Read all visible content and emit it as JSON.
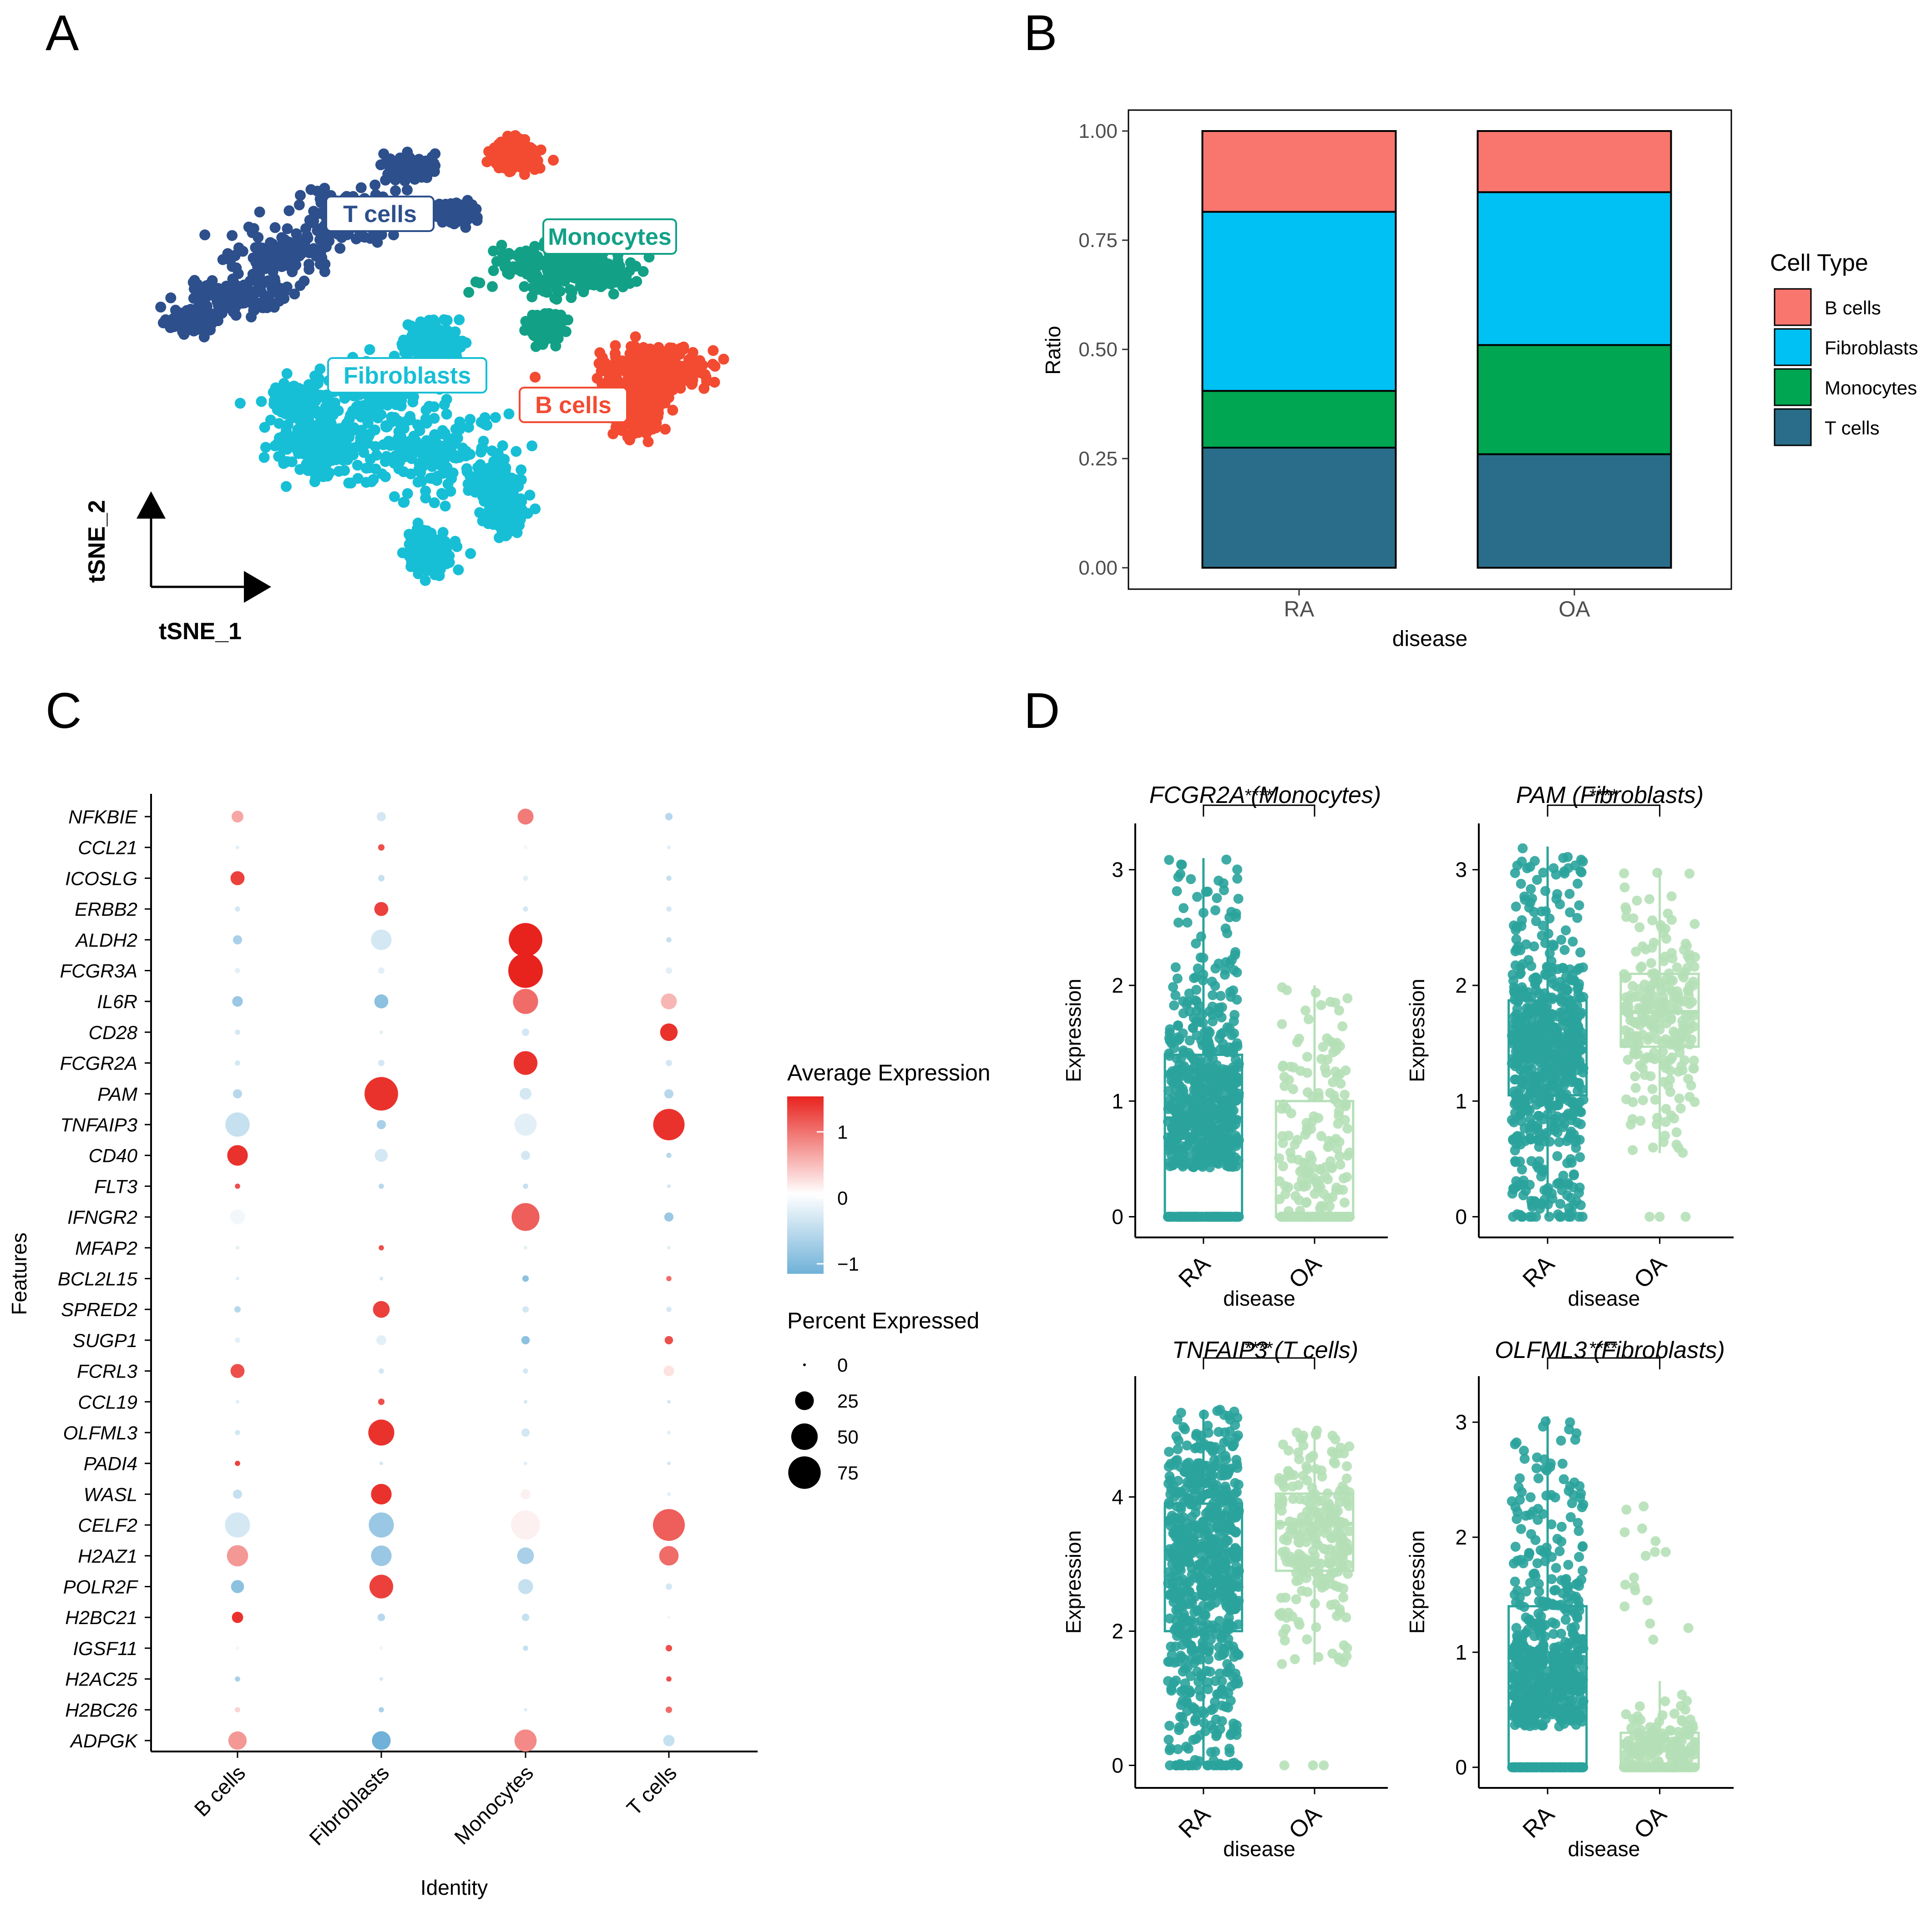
{
  "panel_labels": [
    "A",
    "B",
    "C",
    "D"
  ],
  "colors": {
    "b_cells": "#F8766D",
    "b_cells_tsne": "#F24B32",
    "fibroblasts": "#00C1F3",
    "fibroblasts_tsne": "#17BFD6",
    "monocytes": "#00A651",
    "monocytes_tsne": "#12A187",
    "t_cells": "#2A6D8A",
    "t_cells_tsne": "#2D4F8C",
    "ra": "#2AA39C",
    "oa": "#B5E0B7",
    "expr_high": "#E8231E",
    "expr_mid": "#FFFFFF",
    "expr_low": "#6FB1D8"
  },
  "chart_data": [
    {
      "panel": "A",
      "type": "scatter",
      "xlabel": "tSNE_1",
      "ylabel": "tSNE_2",
      "clusters": [
        {
          "name": "T cells",
          "label": "T cells",
          "color_key": "t_cells_tsne"
        },
        {
          "name": "Monocytes",
          "label": "Monocytes",
          "color_key": "monocytes_tsne"
        },
        {
          "name": "Fibroblasts",
          "label": "Fibroblasts",
          "color_key": "fibroblasts_tsne"
        },
        {
          "name": "B cells",
          "label": "B cells",
          "color_key": "b_cells_tsne"
        }
      ]
    },
    {
      "panel": "B",
      "type": "bar",
      "stacked": true,
      "categories": [
        "RA",
        "OA"
      ],
      "xlabel": "disease",
      "ylabel": "Ratio",
      "ylim": [
        0,
        1
      ],
      "yticks": [
        "0.00",
        "0.25",
        "0.50",
        "0.75",
        "1.00"
      ],
      "legend_title": "Cell Type",
      "legend_position": "right",
      "series": [
        {
          "name": "T cells",
          "color_key": "t_cells",
          "values": [
            0.275,
            0.26
          ]
        },
        {
          "name": "Monocytes",
          "color_key": "monocytes",
          "values": [
            0.13,
            0.25
          ]
        },
        {
          "name": "Fibroblasts",
          "color_key": "fibroblasts",
          "values": [
            0.41,
            0.35
          ]
        },
        {
          "name": "B cells",
          "color_key": "b_cells",
          "values": [
            0.185,
            0.14
          ]
        }
      ],
      "legend_order": [
        "B cells",
        "Fibroblasts",
        "Monocytes",
        "T cells"
      ]
    },
    {
      "panel": "C",
      "type": "dot",
      "xlabel": "Identity",
      "ylabel": "Features",
      "identities": [
        "B cells",
        "Fibroblasts",
        "Monocytes",
        "T cells"
      ],
      "features": [
        "NFKBIE",
        "CCL21",
        "ICOSLG",
        "ERBB2",
        "ALDH2",
        "FCGR3A",
        "IL6R",
        "CD28",
        "FCGR2A",
        "PAM",
        "TNFAIP3",
        "CD40",
        "FLT3",
        "IFNGR2",
        "MFAP2",
        "BCL2L15",
        "SPRED2",
        "SUGP1",
        "FCRL3",
        "CCL19",
        "OLFML3",
        "PADI4",
        "WASL",
        "CELF2",
        "H2AZ1",
        "POLR2F",
        "H2BC21",
        "IGSF11",
        "H2AC25",
        "H2BC26",
        "ADPGK"
      ],
      "avg_expression": [
        [
          0.6,
          -0.3,
          0.9,
          -0.5
        ],
        [
          -0.2,
          1.2,
          -0.1,
          -0.2
        ],
        [
          1.3,
          -0.4,
          -0.2,
          -0.4
        ],
        [
          -0.3,
          1.3,
          -0.3,
          -0.3
        ],
        [
          -0.6,
          -0.3,
          1.5,
          -0.4
        ],
        [
          -0.2,
          -0.2,
          1.5,
          -0.2
        ],
        [
          -0.7,
          -0.8,
          1.0,
          0.5
        ],
        [
          -0.3,
          -0.2,
          -0.3,
          1.4
        ],
        [
          -0.3,
          -0.3,
          1.4,
          -0.3
        ],
        [
          -0.5,
          1.4,
          -0.3,
          -0.5
        ],
        [
          -0.4,
          -0.6,
          -0.2,
          1.4
        ],
        [
          1.4,
          -0.3,
          -0.3,
          -0.5
        ],
        [
          1.2,
          -0.5,
          -0.4,
          -0.3
        ],
        [
          -0.1,
          0.0,
          1.1,
          -0.7
        ],
        [
          -0.2,
          1.2,
          -0.2,
          -0.2
        ],
        [
          -0.2,
          -0.3,
          -0.8,
          1.0
        ],
        [
          -0.5,
          1.3,
          -0.3,
          -0.3
        ],
        [
          -0.2,
          -0.2,
          -0.8,
          1.2
        ],
        [
          1.2,
          -0.3,
          -0.3,
          0.2
        ],
        [
          -0.2,
          1.2,
          -0.3,
          -0.3
        ],
        [
          -0.3,
          1.4,
          -0.3,
          -0.2
        ],
        [
          1.3,
          -0.3,
          -0.2,
          -0.3
        ],
        [
          -0.4,
          1.4,
          0.1,
          -0.2
        ],
        [
          -0.3,
          -0.7,
          0.1,
          1.1
        ],
        [
          0.7,
          -0.7,
          -0.6,
          1.0
        ],
        [
          -0.8,
          1.3,
          -0.4,
          -0.3
        ],
        [
          1.4,
          -0.5,
          -0.4,
          -0.1
        ],
        [
          -0.1,
          -0.1,
          -0.4,
          1.2
        ],
        [
          -0.6,
          -0.3,
          0.0,
          1.2
        ],
        [
          0.3,
          -0.6,
          -0.2,
          1.0
        ],
        [
          0.7,
          -1.0,
          0.8,
          -0.4
        ]
      ],
      "pct_expressed": [
        [
          10,
          6,
          18,
          4
        ],
        [
          1,
          3,
          1,
          1
        ],
        [
          14,
          3,
          2,
          2
        ],
        [
          2,
          14,
          2,
          2
        ],
        [
          6,
          30,
          80,
          2
        ],
        [
          2,
          3,
          85,
          3
        ],
        [
          8,
          14,
          45,
          18
        ],
        [
          2,
          1,
          4,
          22
        ],
        [
          2,
          3,
          40,
          3
        ],
        [
          6,
          80,
          10,
          6
        ],
        [
          42,
          6,
          35,
          70
        ],
        [
          30,
          12,
          6,
          2
        ],
        [
          2,
          2,
          2,
          1
        ],
        [
          16,
          6,
          55,
          6
        ],
        [
          1,
          2,
          1,
          1
        ],
        [
          1,
          1,
          3,
          2
        ],
        [
          3,
          20,
          3,
          2
        ],
        [
          2,
          7,
          5,
          5
        ],
        [
          14,
          2,
          2,
          8
        ],
        [
          1,
          3,
          1,
          1
        ],
        [
          2,
          48,
          5,
          1
        ],
        [
          2,
          1,
          1,
          1
        ],
        [
          6,
          30,
          7,
          1
        ],
        [
          45,
          45,
          60,
          72
        ],
        [
          32,
          30,
          20,
          27
        ],
        [
          12,
          40,
          16,
          3
        ],
        [
          9,
          4,
          4,
          1
        ],
        [
          1,
          1,
          2,
          3
        ],
        [
          2,
          1,
          1,
          2
        ],
        [
          2,
          2,
          1,
          3
        ],
        [
          24,
          25,
          35,
          9
        ]
      ],
      "legend": {
        "avg_title": "Average Expression",
        "avg_ticks": [
          "1",
          "0",
          "−1"
        ],
        "pct_title": "Percent Expressed",
        "pct_ticks": [
          "0",
          "25",
          "50",
          "75"
        ]
      }
    },
    {
      "panel": "D",
      "type": "box",
      "xlabel": "disease",
      "ylabel": "Expression",
      "categories": [
        "RA",
        "OA"
      ],
      "significance": "****",
      "plots": [
        {
          "title": "FCGR2A (Monocytes)",
          "ylim": [
            -0.1,
            3.4
          ],
          "yticks": [
            "0",
            "1",
            "2",
            "3"
          ],
          "ytick_values": [
            0,
            1,
            2,
            3
          ],
          "RA": {
            "q1": 0.0,
            "median": 0.85,
            "q3": 1.4,
            "whisker_low": 0.0,
            "whisker_high": 3.1,
            "max": 3.1
          },
          "OA": {
            "q1": 0.0,
            "median": 0.0,
            "q3": 1.0,
            "whisker_low": 0.0,
            "whisker_high": 2.0,
            "max": 2.0
          }
        },
        {
          "title": "PAM (Fibroblasts)",
          "ylim": [
            -0.1,
            3.4
          ],
          "yticks": [
            "0",
            "1",
            "2",
            "3"
          ],
          "ytick_values": [
            0,
            1,
            2,
            3
          ],
          "RA": {
            "q1": 1.05,
            "median": 1.5,
            "q3": 1.87,
            "whisker_low": 0.0,
            "whisker_high": 3.2,
            "max": 3.2
          },
          "OA": {
            "q1": 1.47,
            "median": 1.77,
            "q3": 2.1,
            "whisker_low": 0.55,
            "whisker_high": 3.0,
            "max": 3.0
          }
        },
        {
          "title": "TNFAIP3 (T cells)",
          "ylim": [
            -0.2,
            5.8
          ],
          "yticks": [
            "0",
            "2",
            "4"
          ],
          "ytick_values": [
            0,
            2,
            4
          ],
          "RA": {
            "q1": 2.0,
            "median": 3.2,
            "q3": 3.9,
            "whisker_low": 0.0,
            "whisker_high": 5.3,
            "max": 5.3
          },
          "OA": {
            "q1": 2.9,
            "median": 3.6,
            "q3": 4.05,
            "whisker_low": 1.5,
            "whisker_high": 5.0,
            "max": 5.0
          }
        },
        {
          "title": "OLFML3 (Fibroblasts)",
          "ylim": [
            -0.1,
            3.4
          ],
          "yticks": [
            "0",
            "1",
            "2",
            "3"
          ],
          "ytick_values": [
            0,
            1,
            2,
            3
          ],
          "RA": {
            "q1": 0.0,
            "median": 0.7,
            "q3": 1.4,
            "whisker_low": 0.0,
            "whisker_high": 3.05,
            "max": 3.05
          },
          "OA": {
            "q1": 0.0,
            "median": 0.0,
            "q3": 0.3,
            "whisker_low": 0.0,
            "whisker_high": 0.75,
            "max": 2.4
          }
        }
      ]
    }
  ]
}
